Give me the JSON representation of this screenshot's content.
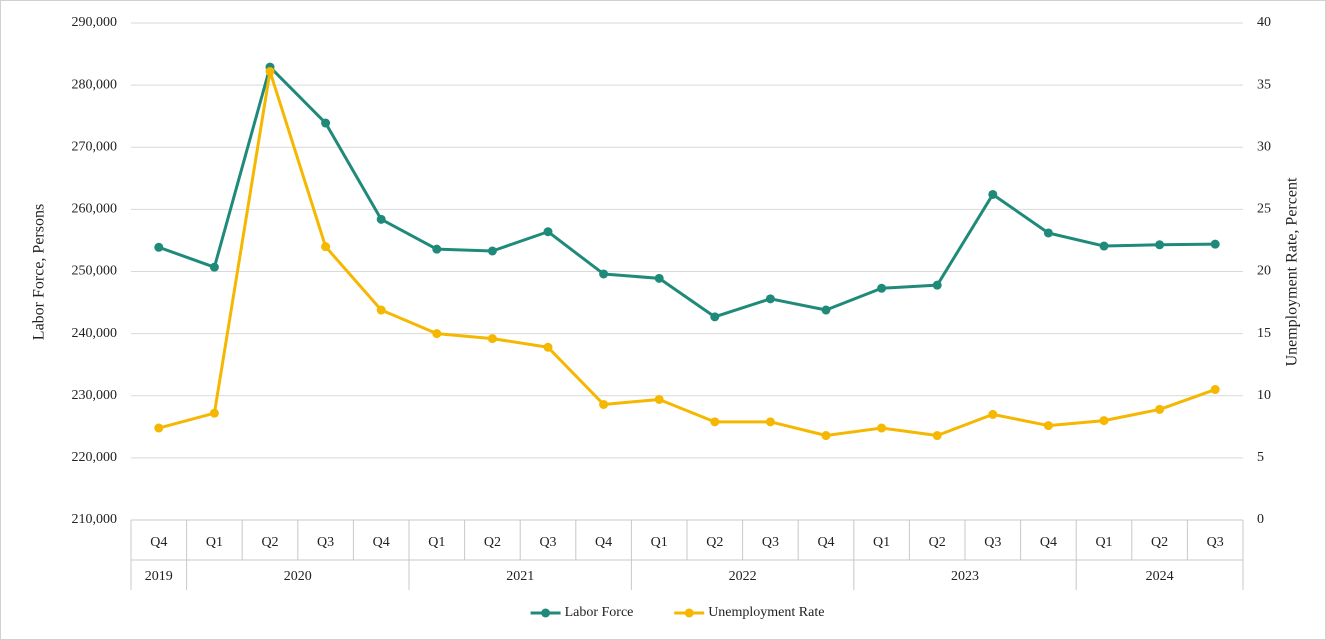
{
  "chart_data": {
    "type": "line",
    "categories": [
      "Q4",
      "Q1",
      "Q2",
      "Q3",
      "Q4",
      "Q1",
      "Q2",
      "Q3",
      "Q4",
      "Q1",
      "Q2",
      "Q3",
      "Q4",
      "Q1",
      "Q2",
      "Q3",
      "Q4",
      "Q1",
      "Q2",
      "Q3"
    ],
    "groups": [
      {
        "label": "2019",
        "categories": 1
      },
      {
        "label": "2020",
        "categories": 4
      },
      {
        "label": "2021",
        "categories": 4
      },
      {
        "label": "2022",
        "categories": 4
      },
      {
        "label": "2023",
        "categories": 4
      },
      {
        "label": "2024",
        "categories": 3
      }
    ],
    "y_label": "Labor Force, Persons",
    "y2_label": "Unemployment Rate, Percent",
    "ylim": [
      210000,
      290000
    ],
    "yticks": [
      {
        "value": 210000,
        "label": "210,000"
      },
      {
        "value": 220000,
        "label": "220,000"
      },
      {
        "value": 230000,
        "label": "230,000"
      },
      {
        "value": 240000,
        "label": "240,000"
      },
      {
        "value": 250000,
        "label": "250,000"
      },
      {
        "value": 260000,
        "label": "260,000"
      },
      {
        "value": 270000,
        "label": "270,000"
      },
      {
        "value": 280000,
        "label": "280,000"
      },
      {
        "value": 290000,
        "label": "290,000"
      }
    ],
    "y2lim": [
      0,
      40
    ],
    "y2ticks": [
      0,
      5,
      10,
      15,
      20,
      25,
      30,
      35,
      40
    ],
    "grid": true,
    "legend": "bottom",
    "series": [
      {
        "name": "Labor Force",
        "color": "#1f8a7a",
        "values": [
          253900,
          250700,
          282900,
          273900,
          258400,
          253600,
          253300,
          256400,
          249600,
          248900,
          242700,
          245600,
          243800,
          247300,
          247800,
          262400,
          256200,
          254100,
          254300,
          254400
        ]
      },
      {
        "name": "Unemployment Rate",
        "color": "#f5b700",
        "axis": "y2",
        "values": [
          7.4,
          8.6,
          36.1,
          22.0,
          16.9,
          15.0,
          14.6,
          13.9,
          9.3,
          9.7,
          7.9,
          7.9,
          6.8,
          7.4,
          6.8,
          8.5,
          7.6,
          8.0,
          8.9,
          10.5
        ]
      }
    ]
  }
}
